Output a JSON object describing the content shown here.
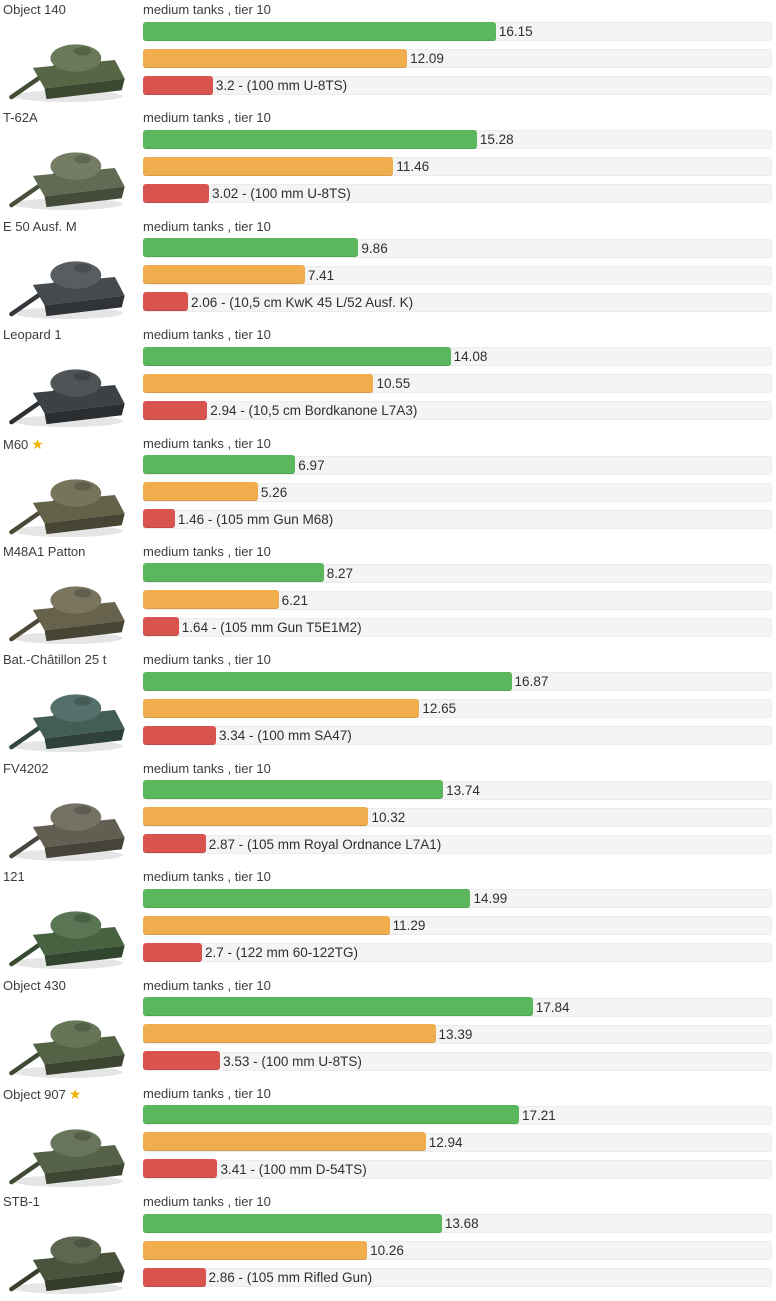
{
  "page": {
    "category_label": "medium tanks , tier 10",
    "star_glyph": "★"
  },
  "colors": {
    "green": "#5bb75b",
    "orange": "#f0ad4e",
    "red": "#d9534f",
    "track": "#f4f4f4",
    "track_border": "#ececec",
    "star": "#efb300",
    "text": "#3d3d3d"
  },
  "chart_data": {
    "type": "bar",
    "orientation": "horizontal",
    "title": "",
    "xlabel": "",
    "ylabel": "",
    "group_label_per_row": "medium tanks , tier 10",
    "categories": [
      "Object 140",
      "T-62A",
      "E 50 Ausf. M",
      "Leopard 1",
      "M60",
      "M48A1 Patton",
      "Bat.-Châtillon 25 t",
      "FV4202",
      "121",
      "Object 430",
      "Object 907",
      "STB-1"
    ],
    "starred_categories": [
      "M60",
      "Object 907"
    ],
    "series": [
      {
        "name": "green",
        "color": "#5bb75b",
        "values": [
          16.15,
          15.28,
          9.86,
          14.08,
          6.97,
          8.27,
          16.87,
          13.74,
          14.99,
          17.84,
          17.21,
          13.68
        ]
      },
      {
        "name": "orange",
        "color": "#f0ad4e",
        "values": [
          12.09,
          11.46,
          7.41,
          10.55,
          5.26,
          6.21,
          12.65,
          10.32,
          11.29,
          13.39,
          12.94,
          10.26
        ]
      },
      {
        "name": "red",
        "color": "#d9534f",
        "values": [
          3.2,
          3.02,
          2.06,
          2.94,
          1.46,
          1.64,
          3.34,
          2.87,
          2.7,
          3.53,
          3.41,
          2.86
        ]
      }
    ],
    "red_bar_gun_annotations": [
      "100 mm U-8TS",
      "100 mm U-8TS",
      "10,5 cm KwK 45 L/52 Ausf. K",
      "10,5 cm Bordkanone L7A3",
      "105 mm Gun M68",
      "105 mm Gun T5E1M2",
      "100 mm SA47",
      "105 mm Royal Ordnance L7A1",
      "122 mm 60-122TG",
      "100 mm U-8TS",
      "100 mm D-54TS",
      "105 mm Rifled Gun"
    ],
    "xlim": [
      0,
      28.7
    ],
    "grid": false,
    "legend": "none"
  },
  "tanks": [
    {
      "name": "Object 140",
      "starred": false,
      "green": 16.15,
      "orange": 12.09,
      "red": 3.2,
      "green_label": "16.15",
      "orange_label": "12.09",
      "red_label": "3.2 - (100 mm U-8TS)",
      "gun": "100 mm U-8TS",
      "tint": "#5f6f4b"
    },
    {
      "name": "T-62A",
      "starred": false,
      "green": 15.28,
      "orange": 11.46,
      "red": 3.02,
      "green_label": "15.28",
      "orange_label": "11.46",
      "red_label": "3.02 - (100 mm U-8TS)",
      "gun": "100 mm U-8TS",
      "tint": "#6a7459"
    },
    {
      "name": "E 50 Ausf. M",
      "starred": false,
      "green": 9.86,
      "orange": 7.41,
      "red": 2.06,
      "green_label": "9.86",
      "orange_label": "7.41",
      "red_label": "2.06 - (10,5 cm KwK 45 L/52 Ausf. K)",
      "gun": "10,5 cm KwK 45 L/52 Ausf. K",
      "tint": "#4b5156"
    },
    {
      "name": "Leopard 1",
      "starred": false,
      "green": 14.08,
      "orange": 10.55,
      "red": 2.94,
      "green_label": "14.08",
      "orange_label": "10.55",
      "red_label": "2.94 - (10,5 cm Bordkanone L7A3)",
      "gun": "10,5 cm Bordkanone L7A3",
      "tint": "#42474b"
    },
    {
      "name": "M60",
      "starred": true,
      "green": 6.97,
      "orange": 5.26,
      "red": 1.46,
      "green_label": "6.97",
      "orange_label": "5.26",
      "red_label": "1.46 - (105 mm Gun M68)",
      "gun": "105 mm Gun M68",
      "tint": "#6d6a50"
    },
    {
      "name": "M48A1 Patton",
      "starred": false,
      "green": 8.27,
      "orange": 6.21,
      "red": 1.64,
      "green_label": "8.27",
      "orange_label": "6.21",
      "red_label": "1.64 - (105 mm Gun T5E1M2)",
      "gun": "105 mm Gun T5E1M2",
      "tint": "#6f6b52"
    },
    {
      "name": "Bat.-Châtillon 25 t",
      "starred": false,
      "green": 16.87,
      "orange": 12.65,
      "red": 3.34,
      "green_label": "16.87",
      "orange_label": "12.65",
      "red_label": "3.34 - (100 mm SA47)",
      "gun": "100 mm SA47",
      "tint": "#49655f"
    },
    {
      "name": "FV4202",
      "starred": false,
      "green": 13.74,
      "orange": 10.32,
      "red": 2.87,
      "green_label": "13.74",
      "orange_label": "10.32",
      "red_label": "2.87 - (105 mm Royal Ordnance L7A1)",
      "gun": "105 mm Royal Ordnance L7A1",
      "tint": "#6b685a"
    },
    {
      "name": "121",
      "starred": false,
      "green": 14.99,
      "orange": 11.29,
      "red": 2.7,
      "green_label": "14.99",
      "orange_label": "11.29",
      "red_label": "2.7 - (122 mm 60-122TG)",
      "gun": "122 mm 60-122TG",
      "tint": "#4d6b47"
    },
    {
      "name": "Object 430",
      "starred": false,
      "green": 17.84,
      "orange": 13.39,
      "red": 3.53,
      "green_label": "17.84",
      "orange_label": "13.39",
      "red_label": "3.53 - (100 mm U-8TS)",
      "gun": "100 mm U-8TS",
      "tint": "#5c6b4b"
    },
    {
      "name": "Object 907",
      "starred": true,
      "green": 17.21,
      "orange": 12.94,
      "red": 3.41,
      "green_label": "17.21",
      "orange_label": "12.94",
      "red_label": "3.41 - (100 mm D-54TS)",
      "gun": "100 mm D-54TS",
      "tint": "#5e6b4f"
    },
    {
      "name": "STB-1",
      "starred": false,
      "green": 13.68,
      "orange": 10.26,
      "red": 2.86,
      "green_label": "13.68",
      "orange_label": "10.26",
      "red_label": "2.86 - (105 mm Rifled Gun)",
      "gun": "105 mm Rifled Gun",
      "tint": "#515c43"
    }
  ]
}
